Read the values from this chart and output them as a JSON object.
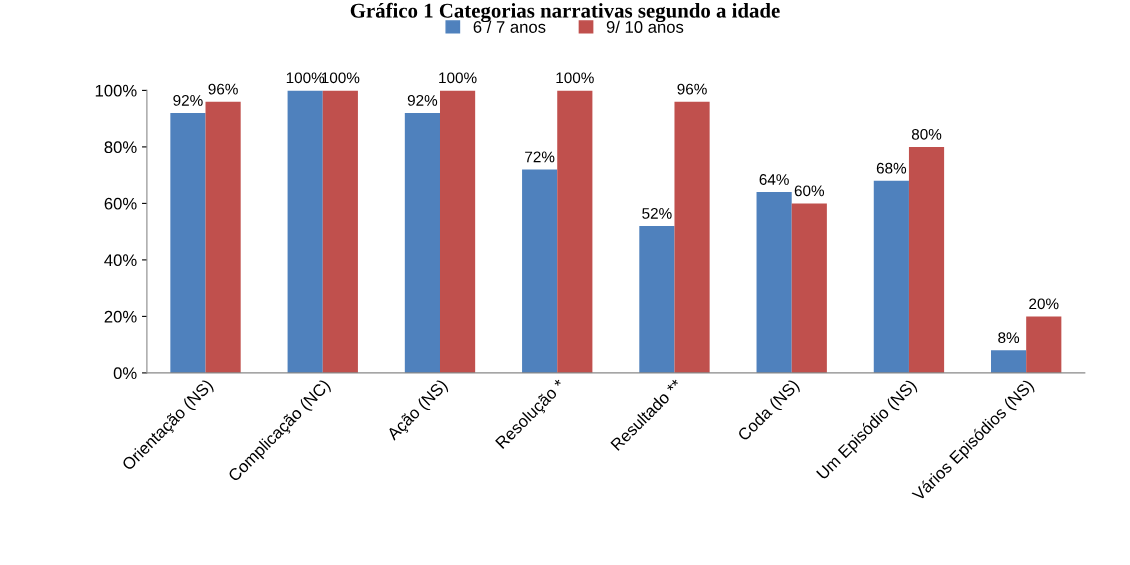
{
  "chart_data": {
    "type": "bar",
    "title": "Gráfico 1 Categorias narrativas segundo a idade",
    "categories": [
      "Orientação (NS)",
      "Complicação (NC)",
      "Ação (NS)",
      "Resolução *",
      "Resultado **",
      "Coda (NS)",
      "Um Episódio (NS)",
      "Vários Episódios (NS)"
    ],
    "series": [
      {
        "name": "6 / 7 anos",
        "color": "#4f81bd",
        "values": [
          92,
          100,
          92,
          72,
          52,
          64,
          68,
          8
        ],
        "value_labels": [
          "92%",
          "100%",
          "92%",
          "72%",
          "52%",
          "64%",
          "68%",
          "8%"
        ]
      },
      {
        "name": "9/ 10 anos",
        "color": "#c0504d",
        "values": [
          96,
          100,
          100,
          100,
          96,
          60,
          80,
          20
        ],
        "value_labels": [
          "96%",
          "100%",
          "100%",
          "100%",
          "96%",
          "60%",
          "80%",
          "20%"
        ]
      }
    ],
    "ylim": [
      0,
      100
    ],
    "yticks": [
      {
        "value": 0,
        "label": "0%"
      },
      {
        "value": 20,
        "label": "20%"
      },
      {
        "value": 40,
        "label": "40%"
      },
      {
        "value": 60,
        "label": "60%"
      },
      {
        "value": 80,
        "label": "80%"
      },
      {
        "value": 100,
        "label": "100%"
      }
    ],
    "legend": "top",
    "grid": false
  }
}
